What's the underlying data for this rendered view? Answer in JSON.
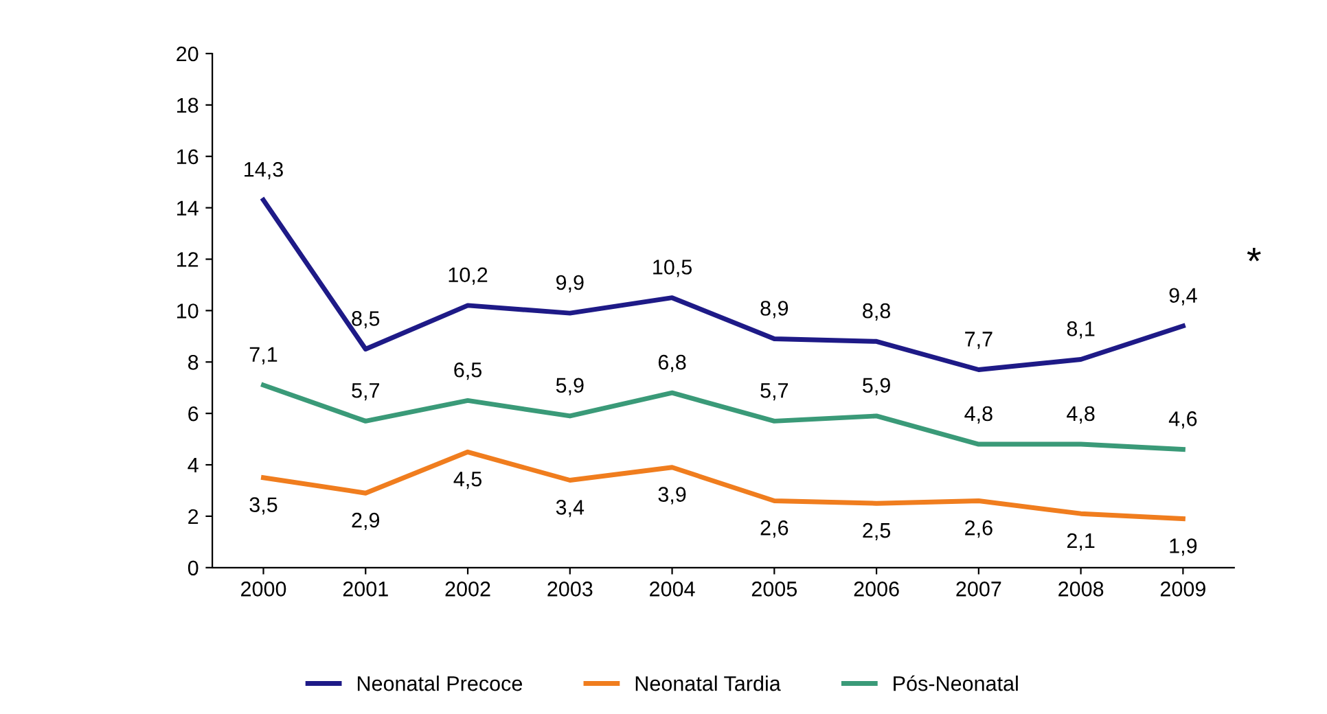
{
  "chart_data": {
    "type": "line",
    "categories": [
      "2000",
      "2001",
      "2002",
      "2003",
      "2004",
      "2005",
      "2006",
      "2007",
      "2008",
      "2009"
    ],
    "series": [
      {
        "name": "Neonatal Precoce",
        "color": "#1e1a87",
        "values": [
          14.3,
          8.5,
          10.2,
          9.9,
          10.5,
          8.9,
          8.8,
          7.7,
          8.1,
          9.4
        ],
        "value_labels": [
          "14,3",
          "8,5",
          "10,2",
          "9,9",
          "10,5",
          "8,9",
          "8,8",
          "7,7",
          "8,1",
          "9,4"
        ]
      },
      {
        "name": "Neonatal Tardia",
        "color": "#f07d1e",
        "values": [
          3.5,
          2.9,
          4.5,
          3.4,
          3.9,
          2.6,
          2.5,
          2.6,
          2.1,
          1.9
        ],
        "value_labels": [
          "3,5",
          "2,9",
          "4,5",
          "3,4",
          "3,9",
          "2,6",
          "2,5",
          "2,6",
          "2,1",
          "1,9"
        ]
      },
      {
        "name": "Pós-Neonatal",
        "color": "#3a9a78",
        "values": [
          7.1,
          5.7,
          6.5,
          5.9,
          6.8,
          5.7,
          5.9,
          4.8,
          4.8,
          4.6
        ],
        "value_labels": [
          "7,1",
          "5,7",
          "6,5",
          "5,9",
          "6,8",
          "5,7",
          "5,9",
          "4,8",
          "4,8",
          "4,6"
        ]
      }
    ],
    "ylim": [
      0,
      20
    ],
    "yticks": [
      0,
      2,
      4,
      6,
      8,
      10,
      12,
      14,
      16,
      18,
      20
    ],
    "annotations": [
      "*"
    ],
    "grid": false,
    "legend": "bottom",
    "marker": "none",
    "line_style": "solid"
  }
}
